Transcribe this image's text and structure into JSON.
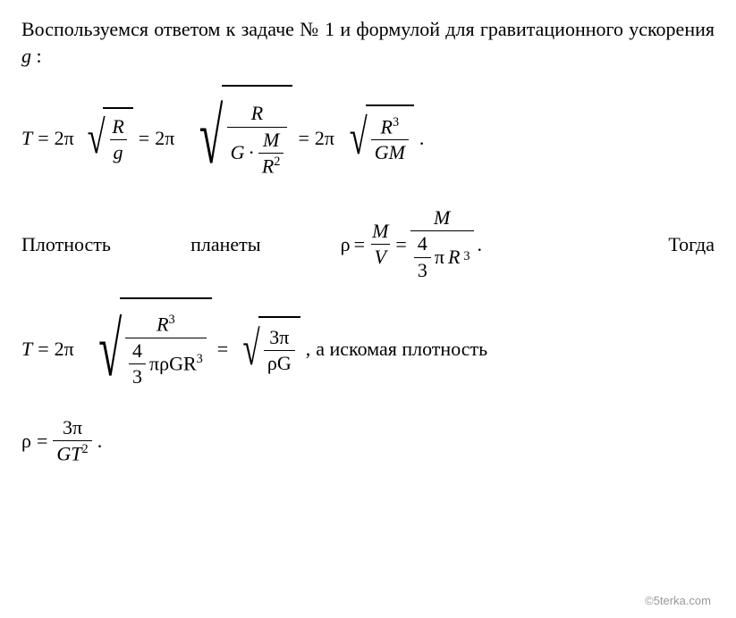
{
  "intro": {
    "line": "Воспользуемся ответом к задаче № 1 и формулой для гравитационного ускорения",
    "var": " g",
    "colon": " :"
  },
  "eq1": {
    "T": "T",
    "eq": " = ",
    "two_pi": "2π",
    "R": "R",
    "g": "g",
    "G": "G",
    "M": "M",
    "R2": "R",
    "sup2": "2",
    "R3": "R",
    "sup3": "3",
    "GM": "GM",
    "period": " ."
  },
  "density_line": {
    "label1": "Плотность",
    "label2": "планеты",
    "rho": "ρ",
    "eq": " = ",
    "M": "M",
    "V": "V",
    "four": "4",
    "three": "3",
    "pi": "π",
    "R3": "R",
    "sup3": "3",
    "period": " .",
    "then": "Тогда"
  },
  "eq2": {
    "T": "T",
    "eq": " = ",
    "two_pi": "2π",
    "R3_top": "R",
    "sup3": "3",
    "four": "4",
    "three": "3",
    "pi_rho_GR3": "πρGR",
    "three_pi": "3π",
    "rho_G": "ρG",
    "comma": " ,",
    "tail": " а искомая плотность"
  },
  "eq3": {
    "rho": "ρ",
    "eq": " = ",
    "three_pi": "3π",
    "GT2": "GT",
    "sup2": "2",
    "period": " ."
  },
  "watermark": "©5terka.com"
}
